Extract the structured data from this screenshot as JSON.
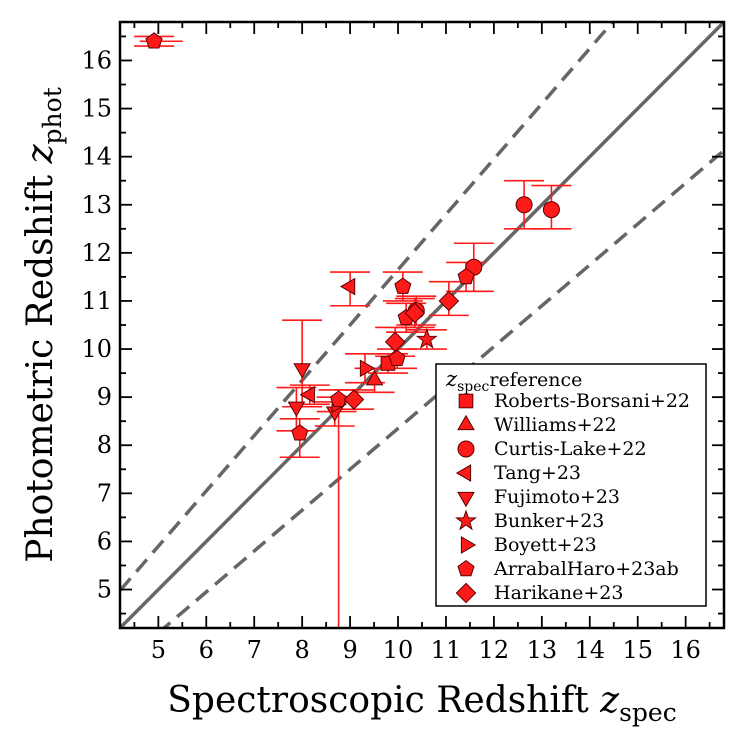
{
  "chart_data": {
    "type": "scatter",
    "title": "",
    "xlabel": "Spectroscopic Redshift",
    "xlabel_symbol": "z",
    "xlabel_sub": "spec",
    "ylabel": "Photometric Redshift",
    "ylabel_symbol": "z",
    "ylabel_sub": "phot",
    "xlim": [
      4.2,
      16.8
    ],
    "ylim": [
      4.2,
      16.8
    ],
    "xticks": [
      "5",
      "6",
      "7",
      "8",
      "9",
      "10",
      "11",
      "12",
      "13",
      "14",
      "15",
      "16"
    ],
    "yticks": [
      "5",
      "6",
      "7",
      "8",
      "9",
      "10",
      "11",
      "12",
      "13",
      "14",
      "15",
      "16"
    ],
    "grid": false,
    "lines": [
      {
        "name": "one-to-one",
        "style": "solid",
        "color": "#666666",
        "relation": "z_phot = z_spec"
      },
      {
        "name": "upper-bound",
        "style": "dashed",
        "color": "#666666",
        "relation": "z_phot = z_spec + 0.15(1+z_spec)"
      },
      {
        "name": "lower-bound",
        "style": "dashed",
        "color": "#666666",
        "relation": "z_phot = z_spec - 0.15(1+z_spec)"
      }
    ],
    "legend": {
      "title_symbol": "z",
      "title_sub": "spec",
      "title_text": "reference",
      "position": "bottom-right"
    },
    "series": [
      {
        "name": "Roberts-Borsani+22",
        "marker": "square",
        "points": [
          {
            "x": 9.79,
            "y": 9.7,
            "yerr": [
              0.2,
              0.2
            ]
          }
        ]
      },
      {
        "name": "Williams+22",
        "marker": "triangle-up",
        "points": [
          {
            "x": 9.51,
            "y": 9.35,
            "yerr": [
              0.25,
              0.25
            ]
          }
        ]
      },
      {
        "name": "Curtis-Lake+22",
        "marker": "circle",
        "points": [
          {
            "x": 10.38,
            "y": 10.8,
            "yerr": [
              0.3,
              0.3
            ]
          },
          {
            "x": 11.58,
            "y": 11.7,
            "yerr": [
              0.5,
              0.5
            ]
          },
          {
            "x": 12.63,
            "y": 13.0,
            "yerr": [
              0.5,
              0.5
            ]
          },
          {
            "x": 13.2,
            "y": 12.9,
            "yerr": [
              0.4,
              0.5
            ]
          }
        ]
      },
      {
        "name": "Tang+23",
        "marker": "triangle-left",
        "points": [
          {
            "x": 8.16,
            "y": 9.05,
            "yerr": [
              0.2,
              0.2
            ]
          },
          {
            "x": 9.0,
            "y": 11.3,
            "yerr": [
              0.4,
              0.3
            ]
          }
        ]
      },
      {
        "name": "Fujimoto+23",
        "marker": "triangle-down",
        "points": [
          {
            "x": 7.88,
            "y": 8.8,
            "yerr": [
              0.5,
              0.4
            ]
          },
          {
            "x": 8.0,
            "y": 9.6,
            "yerr": [
              0.8,
              1.0
            ]
          },
          {
            "x": 8.68,
            "y": 8.7,
            "yerr": [
              0.3,
              0.2
            ]
          }
        ]
      },
      {
        "name": "Bunker+23",
        "marker": "star",
        "points": [
          {
            "x": 10.6,
            "y": 10.2,
            "yerr": [
              0.2,
              0.2
            ]
          }
        ]
      },
      {
        "name": "Boyett+23",
        "marker": "triangle-right",
        "points": [
          {
            "x": 9.31,
            "y": 9.6,
            "yerr": [
              0.3,
              0.3
            ]
          },
          {
            "x": 8.72,
            "y": 8.85,
            "yerr": [
              0.15,
              0.15
            ]
          }
        ]
      },
      {
        "name": "ArrabalHaro+23ab",
        "marker": "pentagon",
        "points": [
          {
            "x": 4.91,
            "y": 16.4,
            "yerr": [
              0.1,
              0.1
            ],
            "xerr": [
              0.3,
              0.6
            ]
          },
          {
            "x": 7.95,
            "y": 8.25,
            "yerr": [
              0.5,
              0.3
            ]
          },
          {
            "x": 8.76,
            "y": 8.95,
            "yerr": [
              5.0,
              0.2
            ]
          },
          {
            "x": 10.1,
            "y": 11.3,
            "yerr": [
              0.3,
              0.3
            ]
          },
          {
            "x": 10.17,
            "y": 10.65,
            "yerr": [
              0.3,
              0.3
            ]
          },
          {
            "x": 11.42,
            "y": 11.5,
            "yerr": [
              0.3,
              0.3
            ]
          },
          {
            "x": 9.98,
            "y": 9.8,
            "yerr": [
              0.2,
              0.2
            ]
          }
        ]
      },
      {
        "name": "Harikane+23",
        "marker": "diamond",
        "points": [
          {
            "x": 9.08,
            "y": 8.95,
            "yerr": [
              0.2,
              0.2
            ]
          },
          {
            "x": 9.94,
            "y": 10.15,
            "yerr": [
              0.3,
              0.3
            ]
          },
          {
            "x": 10.35,
            "y": 10.75,
            "yerr": [
              0.3,
              0.3
            ]
          },
          {
            "x": 11.06,
            "y": 11.0,
            "yerr": [
              0.3,
              0.4
            ]
          }
        ]
      }
    ],
    "colors": {
      "marker_fill": "#ff1a1a",
      "marker_edge": "#5a0000",
      "errorbar": "#ff1a1a",
      "reference_line": "#666666"
    }
  }
}
